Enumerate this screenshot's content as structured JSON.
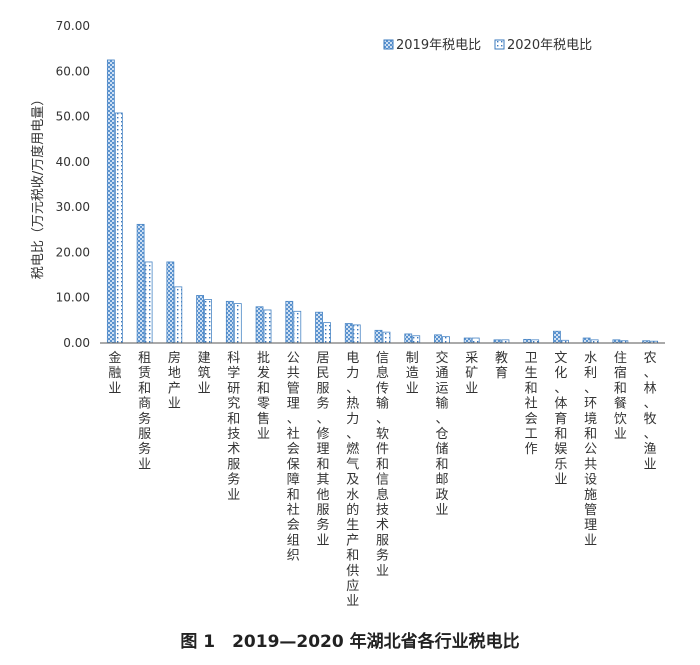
{
  "chart_data": {
    "type": "bar",
    "title": "",
    "xlabel": "",
    "ylabel": "税电比（万元税收/万度用电量）",
    "ylim": [
      0,
      70
    ],
    "yticks": [
      "0.00",
      "10.00",
      "20.00",
      "30.00",
      "40.00",
      "50.00",
      "60.00",
      "70.00"
    ],
    "grid": false,
    "legend_position": "top-right",
    "categories": [
      "金融业",
      "租赁和商务服务业",
      "房地产业",
      "建筑业",
      "科学研究和技术服务业",
      "批发和零售业",
      "公共管理、社会保障和社会组织",
      "居民服务、修理和其他服务业",
      "电力、热力、燃气及水的生产和供应业",
      "信息传输、软件和信息技术服务业",
      "制造业",
      "交通运输、仓储和邮政业",
      "采矿业",
      "教育",
      "卫生和社会工作",
      "文化、体育和娱乐业",
      "水利、环境和公共设施管理业",
      "住宿和餐饮业",
      "农、林、牧、渔业"
    ],
    "series": [
      {
        "name": "2019年税电比",
        "color": "#4a86c5",
        "values": [
          62.5,
          26.2,
          17.9,
          10.5,
          9.2,
          8.0,
          9.2,
          6.8,
          4.3,
          2.8,
          2.0,
          1.8,
          1.1,
          0.7,
          0.8,
          2.6,
          1.1,
          0.7,
          0.5
        ]
      },
      {
        "name": "2020年税电比",
        "color": "#4a86c5",
        "values": [
          50.8,
          17.9,
          12.4,
          9.6,
          8.7,
          7.3,
          7.0,
          4.5,
          4.0,
          2.4,
          1.6,
          1.4,
          1.1,
          0.7,
          0.7,
          0.6,
          0.7,
          0.5,
          0.4
        ]
      }
    ]
  },
  "caption": "图 1　2019—2020 年湖北省各行业税电比"
}
